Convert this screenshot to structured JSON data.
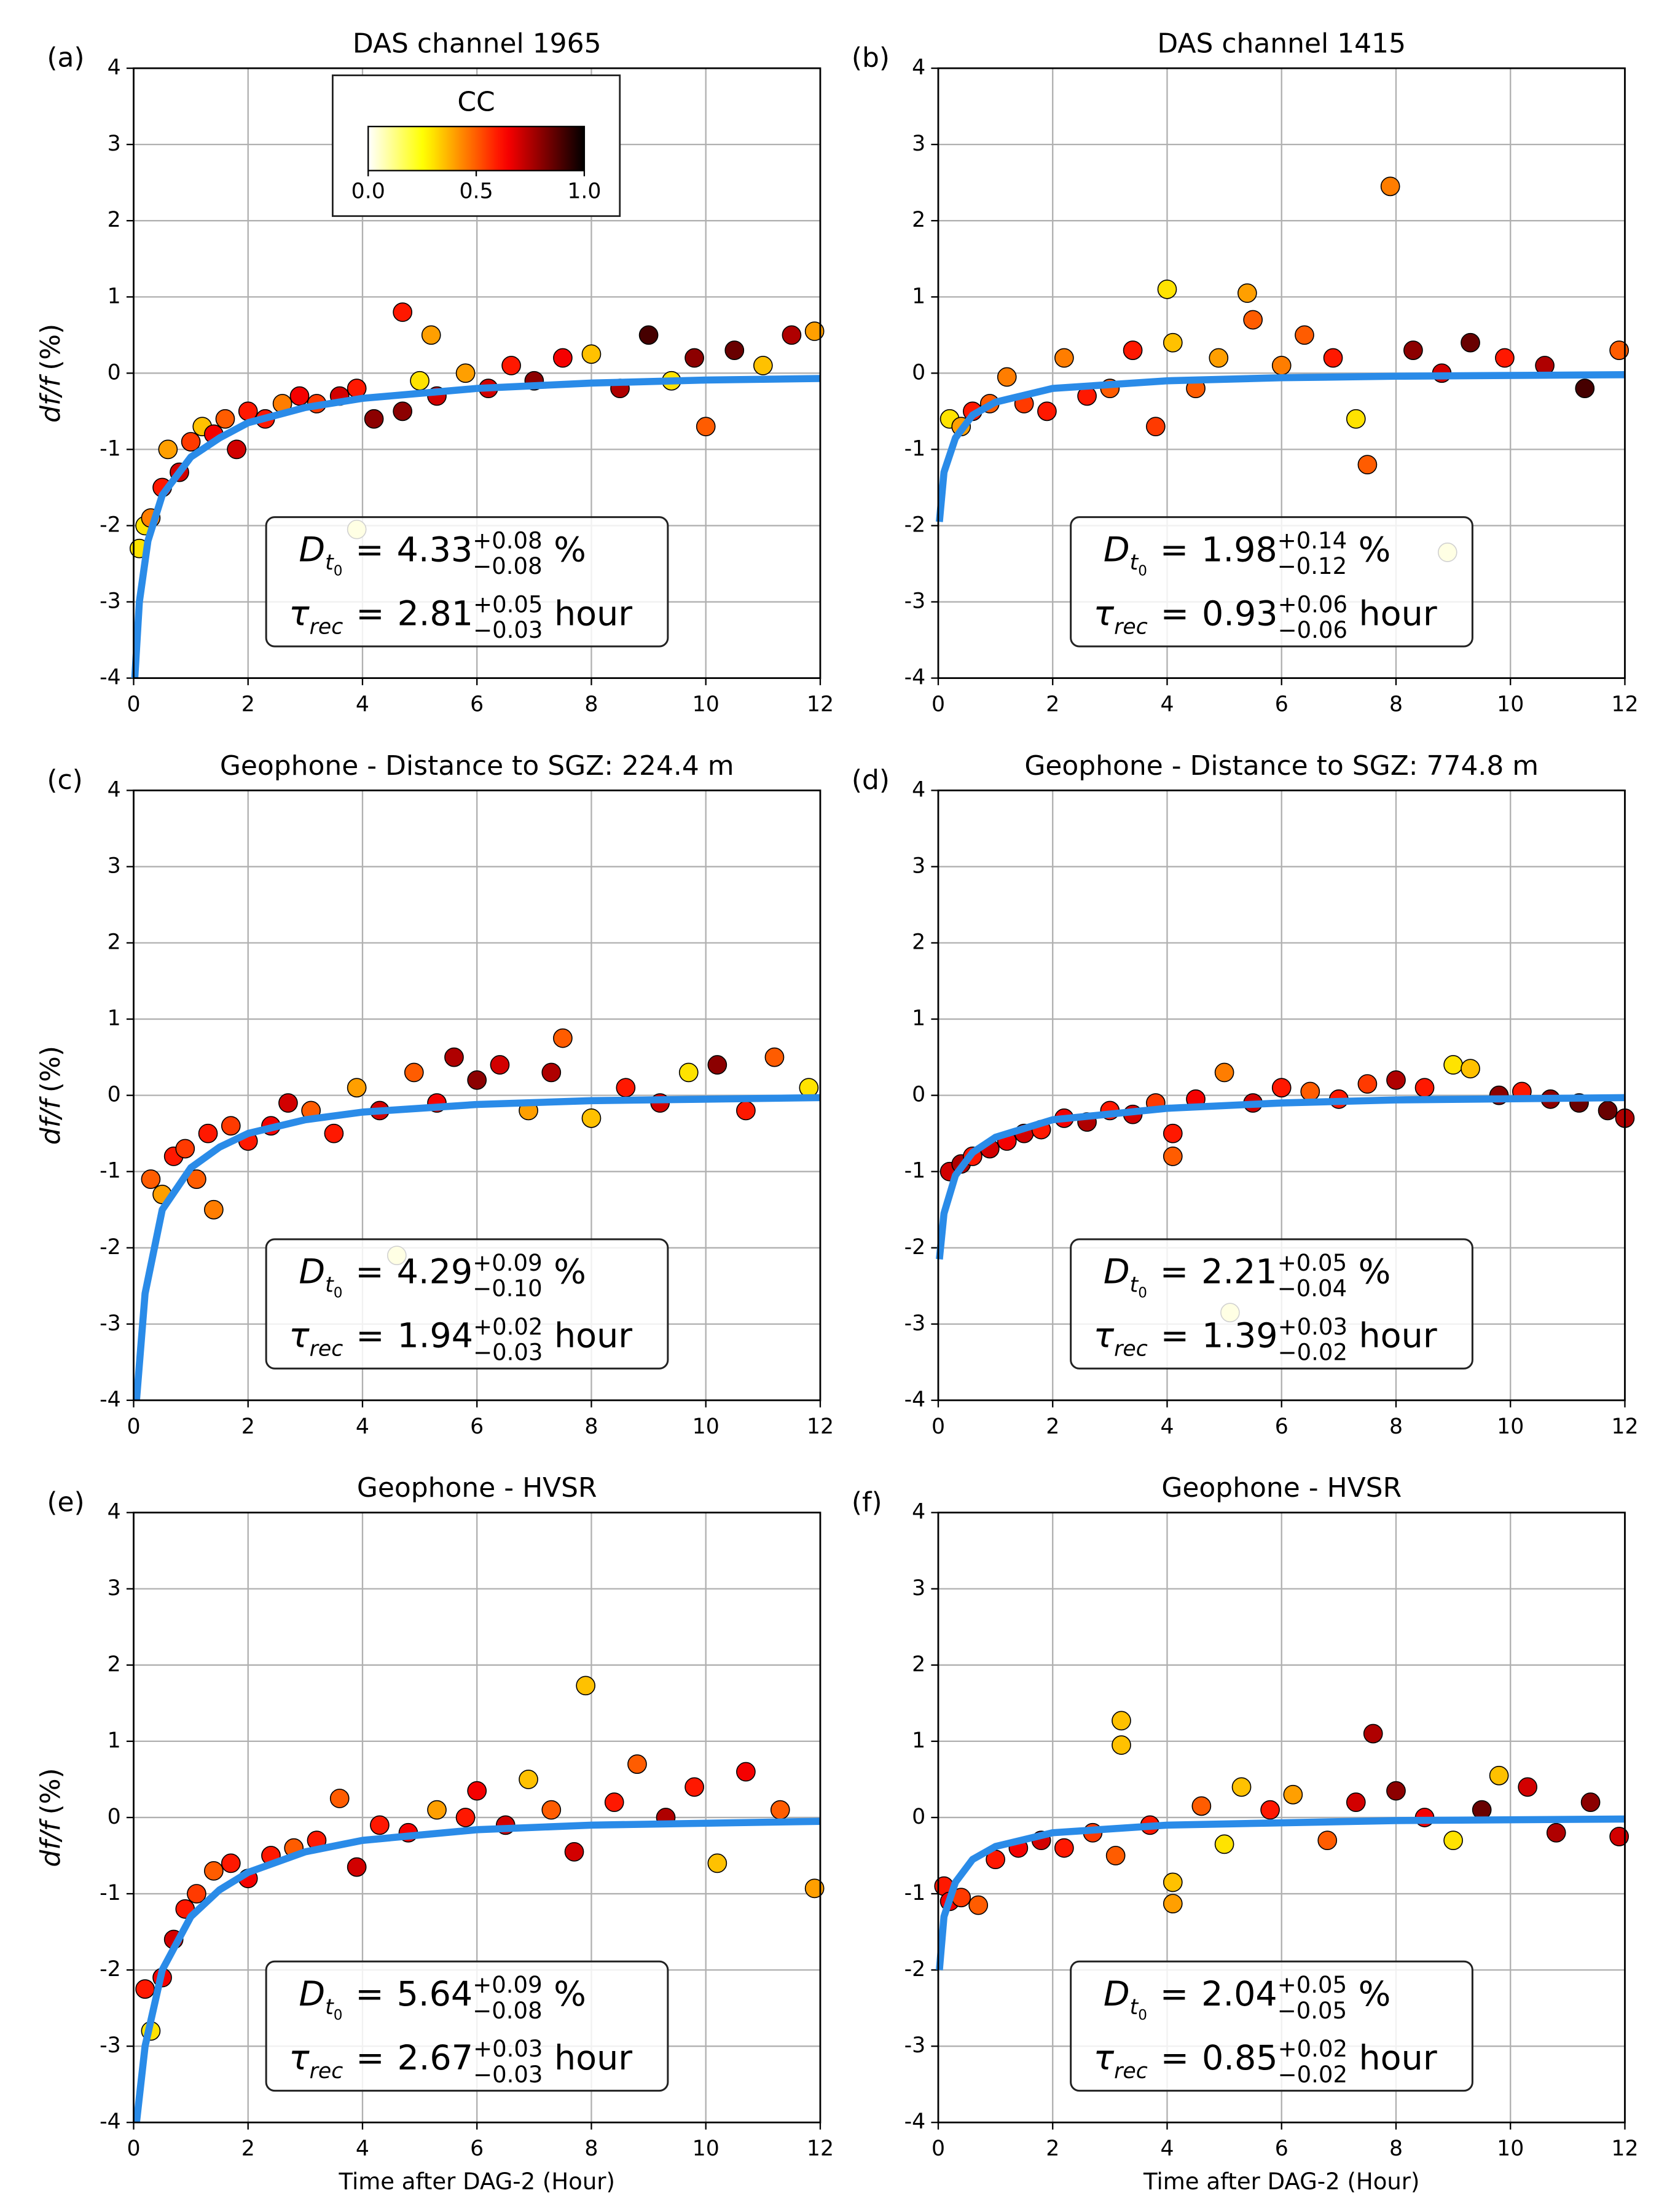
{
  "annotation_format": {
    "d": "D",
    "d_sub": "t",
    "d_subsub": "0",
    "tau": "τ",
    "tau_sub": "rec",
    "equals": "=",
    "d_unit": "%",
    "tau_unit": "hour"
  },
  "chart_data": [
    {
      "type": "scatter",
      "panel_label": "(a)",
      "title": "DAS channel 1965",
      "ylabel_var": "df/f",
      "ylabel_unit": "(%)",
      "xlim": [
        0,
        12
      ],
      "xticks": [
        0,
        2,
        4,
        6,
        8,
        10,
        12
      ],
      "ylim": [
        -4,
        4
      ],
      "yticks": [
        -4,
        -3,
        -2,
        -1,
        0,
        1,
        2,
        3,
        4
      ],
      "grid": true,
      "points": {
        "x": [
          0.1,
          0.2,
          0.3,
          0.5,
          0.6,
          0.8,
          1.0,
          1.2,
          1.4,
          1.6,
          1.8,
          2.0,
          2.3,
          2.6,
          2.9,
          3.2,
          3.6,
          3.9,
          4.2,
          4.7,
          5.0,
          5.3,
          5.8,
          6.2,
          6.6,
          7.0,
          7.5,
          8.0,
          8.5,
          9.0,
          9.4,
          9.8,
          10.0,
          10.5,
          11.0,
          11.5,
          11.9,
          3.9,
          4.7,
          5.2
        ],
        "values": [
          -2.3,
          -2.0,
          -1.9,
          -1.5,
          -1.0,
          -1.3,
          -0.9,
          -0.7,
          -0.8,
          -0.6,
          -1.0,
          -0.5,
          -0.6,
          -0.4,
          -0.3,
          -0.4,
          -0.3,
          -0.2,
          -0.6,
          -0.5,
          -0.1,
          -0.3,
          0.0,
          -0.2,
          0.1,
          -0.1,
          0.2,
          0.25,
          -0.2,
          0.5,
          -0.1,
          0.2,
          -0.7,
          0.3,
          0.1,
          0.5,
          0.55,
          -2.05,
          0.8,
          0.5
        ],
        "cc": [
          0.3,
          0.3,
          0.45,
          0.6,
          0.4,
          0.7,
          0.55,
          0.35,
          0.65,
          0.5,
          0.7,
          0.6,
          0.6,
          0.45,
          0.65,
          0.55,
          0.7,
          0.6,
          0.8,
          0.8,
          0.3,
          0.7,
          0.4,
          0.7,
          0.6,
          0.8,
          0.65,
          0.35,
          0.75,
          0.9,
          0.3,
          0.8,
          0.5,
          0.85,
          0.35,
          0.75,
          0.4,
          0.15,
          0.6,
          0.4
        ]
      },
      "fit": {
        "color": "#2a8be8",
        "x": [
          0.02,
          0.1,
          0.25,
          0.5,
          1,
          1.5,
          2,
          3,
          4,
          6,
          8,
          10,
          12
        ],
        "values": [
          -4,
          -3,
          -2.2,
          -1.6,
          -1.1,
          -0.85,
          -0.65,
          -0.45,
          -0.33,
          -0.2,
          -0.13,
          -0.09,
          -0.07
        ]
      },
      "annotation": {
        "D": "4.33",
        "D_plus": "+0.08",
        "D_minus": "−0.08",
        "tau": "2.81",
        "tau_plus": "+0.05",
        "tau_minus": "−0.03"
      },
      "colorbar": {
        "title": "CC",
        "lim": [
          0,
          1
        ],
        "ticks": [
          {
            "value": 0,
            "label": "0.0"
          },
          {
            "value": 0.5,
            "label": "0.5"
          },
          {
            "value": 1,
            "label": "1.0"
          }
        ]
      }
    },
    {
      "type": "scatter",
      "panel_label": "(b)",
      "title": "DAS channel 1415",
      "xlim": [
        0,
        12
      ],
      "xticks": [
        0,
        2,
        4,
        6,
        8,
        10,
        12
      ],
      "ylim": [
        -4,
        4
      ],
      "yticks": [
        -4,
        -3,
        -2,
        -1,
        0,
        1,
        2,
        3,
        4
      ],
      "grid": true,
      "points": {
        "x": [
          0.2,
          0.4,
          0.6,
          0.9,
          1.2,
          1.5,
          1.9,
          2.2,
          2.6,
          3.0,
          3.4,
          3.8,
          4.0,
          4.1,
          4.5,
          4.9,
          5.4,
          5.5,
          6.0,
          6.4,
          6.9,
          7.3,
          7.5,
          7.9,
          8.3,
          8.8,
          9.3,
          9.9,
          10.6,
          11.3,
          11.9,
          8.9
        ],
        "values": [
          -0.6,
          -0.7,
          -0.5,
          -0.4,
          -0.05,
          -0.4,
          -0.5,
          0.2,
          -0.3,
          -0.2,
          0.3,
          -0.7,
          1.1,
          0.4,
          -0.2,
          0.2,
          1.05,
          0.7,
          0.1,
          0.5,
          0.2,
          -0.6,
          -1.2,
          2.45,
          0.3,
          0.0,
          0.4,
          0.2,
          0.1,
          -0.2,
          0.3,
          -2.35
        ],
        "cc": [
          0.3,
          0.4,
          0.6,
          0.5,
          0.45,
          0.55,
          0.6,
          0.45,
          0.6,
          0.5,
          0.6,
          0.55,
          0.3,
          0.35,
          0.5,
          0.4,
          0.4,
          0.5,
          0.45,
          0.5,
          0.6,
          0.3,
          0.5,
          0.45,
          0.8,
          0.7,
          0.85,
          0.6,
          0.75,
          0.9,
          0.5,
          0.15
        ]
      },
      "fit": {
        "color": "#2a8be8",
        "x": [
          0.02,
          0.1,
          0.3,
          0.6,
          1,
          2,
          4,
          6,
          8,
          12
        ],
        "values": [
          -1.95,
          -1.3,
          -0.85,
          -0.55,
          -0.38,
          -0.2,
          -0.1,
          -0.06,
          -0.04,
          -0.02
        ]
      },
      "annotation": {
        "D": "1.98",
        "D_plus": "+0.14",
        "D_minus": "−0.12",
        "tau": "0.93",
        "tau_plus": "+0.06",
        "tau_minus": "−0.06"
      }
    },
    {
      "type": "scatter",
      "panel_label": "(c)",
      "title": "Geophone - Distance to SGZ: 224.4 m",
      "ylabel_var": "df/f",
      "ylabel_unit": "(%)",
      "xlim": [
        0,
        12
      ],
      "xticks": [
        0,
        2,
        4,
        6,
        8,
        10,
        12
      ],
      "ylim": [
        -4,
        4
      ],
      "yticks": [
        -4,
        -3,
        -2,
        -1,
        0,
        1,
        2,
        3,
        4
      ],
      "grid": true,
      "points": {
        "x": [
          0.3,
          0.5,
          0.7,
          0.9,
          1.1,
          1.3,
          1.4,
          1.7,
          2.0,
          2.4,
          2.7,
          3.1,
          3.5,
          3.9,
          4.3,
          4.6,
          4.9,
          5.3,
          5.6,
          6.0,
          6.4,
          6.9,
          7.3,
          7.5,
          8.0,
          8.6,
          9.2,
          9.7,
          10.2,
          10.7,
          11.2,
          11.8
        ],
        "values": [
          -1.1,
          -1.3,
          -0.8,
          -0.7,
          -1.1,
          -0.5,
          -1.5,
          -0.4,
          -0.6,
          -0.4,
          -0.1,
          -0.2,
          -0.5,
          0.1,
          -0.2,
          -2.1,
          0.3,
          -0.1,
          0.5,
          0.2,
          0.4,
          -0.2,
          0.3,
          0.75,
          -0.3,
          0.1,
          -0.1,
          0.3,
          0.4,
          -0.2,
          0.5,
          0.1
        ],
        "cc": [
          0.5,
          0.4,
          0.6,
          0.55,
          0.5,
          0.6,
          0.45,
          0.55,
          0.6,
          0.65,
          0.7,
          0.5,
          0.6,
          0.4,
          0.7,
          0.15,
          0.5,
          0.65,
          0.75,
          0.8,
          0.7,
          0.4,
          0.75,
          0.5,
          0.35,
          0.6,
          0.7,
          0.3,
          0.8,
          0.6,
          0.5,
          0.3
        ]
      },
      "fit": {
        "color": "#2a8be8",
        "x": [
          0.05,
          0.2,
          0.5,
          1,
          1.5,
          2,
          3,
          4,
          6,
          8,
          12
        ],
        "values": [
          -4,
          -2.6,
          -1.5,
          -0.95,
          -0.68,
          -0.5,
          -0.32,
          -0.22,
          -0.12,
          -0.07,
          -0.03
        ]
      },
      "annotation": {
        "D": "4.29",
        "D_plus": "+0.09",
        "D_minus": "−0.10",
        "tau": "1.94",
        "tau_plus": "+0.02",
        "tau_minus": "−0.03"
      }
    },
    {
      "type": "scatter",
      "panel_label": "(d)",
      "title": "Geophone - Distance to SGZ: 774.8 m",
      "xlim": [
        0,
        12
      ],
      "xticks": [
        0,
        2,
        4,
        6,
        8,
        10,
        12
      ],
      "ylim": [
        -4,
        4
      ],
      "yticks": [
        -4,
        -3,
        -2,
        -1,
        0,
        1,
        2,
        3,
        4
      ],
      "grid": true,
      "points": {
        "x": [
          0.2,
          0.4,
          0.6,
          0.9,
          1.2,
          1.5,
          1.8,
          2.2,
          2.6,
          3.0,
          3.4,
          3.8,
          4.1,
          4.1,
          4.5,
          5.0,
          5.1,
          5.5,
          6.0,
          6.5,
          7.0,
          7.5,
          8.0,
          8.5,
          9.0,
          9.3,
          9.8,
          10.2,
          10.7,
          11.2,
          11.7,
          12.0
        ],
        "values": [
          -1.0,
          -0.9,
          -0.8,
          -0.7,
          -0.6,
          -0.5,
          -0.45,
          -0.3,
          -0.35,
          -0.2,
          -0.25,
          -0.1,
          -0.5,
          -0.8,
          -0.05,
          0.3,
          -2.85,
          -0.1,
          0.1,
          0.05,
          -0.05,
          0.15,
          0.2,
          0.1,
          0.4,
          0.35,
          0.0,
          0.05,
          -0.05,
          -0.1,
          -0.2,
          -0.3
        ],
        "cc": [
          0.7,
          0.75,
          0.6,
          0.7,
          0.65,
          0.7,
          0.6,
          0.65,
          0.75,
          0.6,
          0.7,
          0.55,
          0.6,
          0.5,
          0.65,
          0.45,
          0.15,
          0.7,
          0.6,
          0.5,
          0.6,
          0.55,
          0.75,
          0.6,
          0.3,
          0.35,
          0.8,
          0.6,
          0.8,
          0.85,
          0.85,
          0.75
        ]
      },
      "fit": {
        "color": "#2a8be8",
        "x": [
          0.02,
          0.1,
          0.3,
          0.6,
          1,
          2,
          4,
          6,
          8,
          12
        ],
        "values": [
          -2.15,
          -1.55,
          -1.05,
          -0.75,
          -0.55,
          -0.32,
          -0.17,
          -0.1,
          -0.06,
          -0.03
        ]
      },
      "annotation": {
        "D": "2.21",
        "D_plus": "+0.05",
        "D_minus": "−0.04",
        "tau": "1.39",
        "tau_plus": "+0.03",
        "tau_minus": "−0.02"
      }
    },
    {
      "type": "scatter",
      "panel_label": "(e)",
      "title": "Geophone - HVSR",
      "ylabel_var": "df/f",
      "ylabel_unit": "(%)",
      "xlabel": "Time after DAG-2 (Hour)",
      "xlim": [
        0,
        12
      ],
      "xticks": [
        0,
        2,
        4,
        6,
        8,
        10,
        12
      ],
      "ylim": [
        -4,
        4
      ],
      "yticks": [
        -4,
        -3,
        -2,
        -1,
        0,
        1,
        2,
        3,
        4
      ],
      "grid": true,
      "points": {
        "x": [
          0.2,
          0.3,
          0.5,
          0.7,
          0.9,
          1.1,
          1.4,
          1.7,
          2.0,
          2.4,
          2.8,
          3.2,
          3.6,
          3.9,
          4.3,
          4.8,
          5.3,
          5.8,
          6.0,
          6.5,
          6.9,
          7.3,
          7.7,
          7.9,
          8.4,
          8.8,
          9.3,
          9.8,
          10.2,
          10.7,
          11.3,
          11.9
        ],
        "values": [
          -2.25,
          -2.8,
          -2.1,
          -1.6,
          -1.2,
          -1.0,
          -0.7,
          -0.6,
          -0.8,
          -0.5,
          -0.4,
          -0.3,
          0.25,
          -0.65,
          -0.1,
          -0.2,
          0.1,
          0.0,
          0.35,
          -0.1,
          0.5,
          0.1,
          -0.45,
          1.73,
          0.2,
          0.7,
          0.0,
          0.4,
          -0.6,
          0.6,
          0.1,
          -0.93
        ],
        "cc": [
          0.6,
          0.3,
          0.65,
          0.7,
          0.6,
          0.55,
          0.5,
          0.6,
          0.65,
          0.6,
          0.5,
          0.6,
          0.5,
          0.7,
          0.6,
          0.65,
          0.4,
          0.6,
          0.65,
          0.7,
          0.35,
          0.5,
          0.7,
          0.35,
          0.6,
          0.5,
          0.75,
          0.6,
          0.35,
          0.65,
          0.5,
          0.4
        ]
      },
      "fit": {
        "color": "#2a8be8",
        "x": [
          0.05,
          0.2,
          0.5,
          1,
          1.5,
          2,
          3,
          4,
          6,
          8,
          12
        ],
        "values": [
          -4,
          -3,
          -2,
          -1.3,
          -0.95,
          -0.72,
          -0.45,
          -0.3,
          -0.16,
          -0.1,
          -0.05
        ]
      },
      "annotation": {
        "D": "5.64",
        "D_plus": "+0.09",
        "D_minus": "−0.08",
        "tau": "2.67",
        "tau_plus": "+0.03",
        "tau_minus": "−0.03"
      }
    },
    {
      "type": "scatter",
      "panel_label": "(f)",
      "title": "Geophone - HVSR",
      "xlabel": "Time after DAG-2 (Hour)",
      "xlim": [
        0,
        12
      ],
      "xticks": [
        0,
        2,
        4,
        6,
        8,
        10,
        12
      ],
      "ylim": [
        -4,
        4
      ],
      "yticks": [
        -4,
        -3,
        -2,
        -1,
        0,
        1,
        2,
        3,
        4
      ],
      "grid": true,
      "points": {
        "x": [
          0.1,
          0.2,
          0.4,
          0.7,
          1.0,
          1.4,
          1.8,
          2.2,
          2.7,
          3.1,
          3.2,
          3.2,
          3.7,
          4.1,
          4.1,
          4.6,
          5.0,
          5.3,
          5.8,
          6.2,
          6.8,
          7.3,
          7.6,
          8.0,
          8.5,
          9.0,
          9.5,
          9.8,
          10.3,
          10.8,
          11.4,
          11.9
        ],
        "values": [
          -0.9,
          -1.1,
          -1.05,
          -1.15,
          -0.55,
          -0.4,
          -0.3,
          -0.4,
          -0.2,
          -0.5,
          0.95,
          1.27,
          -0.1,
          -1.13,
          -0.85,
          0.15,
          -0.35,
          0.4,
          0.1,
          0.3,
          -0.3,
          0.2,
          1.1,
          0.35,
          0.0,
          -0.3,
          0.1,
          0.55,
          0.4,
          -0.2,
          0.2,
          -0.25
        ],
        "cc": [
          0.6,
          0.65,
          0.55,
          0.5,
          0.6,
          0.65,
          0.7,
          0.6,
          0.55,
          0.5,
          0.35,
          0.35,
          0.6,
          0.4,
          0.35,
          0.5,
          0.3,
          0.35,
          0.6,
          0.4,
          0.5,
          0.7,
          0.75,
          0.8,
          0.65,
          0.3,
          0.85,
          0.35,
          0.7,
          0.75,
          0.8,
          0.7
        ]
      },
      "fit": {
        "color": "#2a8be8",
        "x": [
          0.02,
          0.1,
          0.3,
          0.6,
          1,
          2,
          4,
          8,
          12
        ],
        "values": [
          -2,
          -1.3,
          -0.85,
          -0.55,
          -0.38,
          -0.2,
          -0.1,
          -0.04,
          -0.02
        ]
      },
      "annotation": {
        "D": "2.04",
        "D_plus": "+0.05",
        "D_minus": "−0.05",
        "tau": "0.85",
        "tau_plus": "+0.02",
        "tau_minus": "−0.02"
      }
    }
  ]
}
